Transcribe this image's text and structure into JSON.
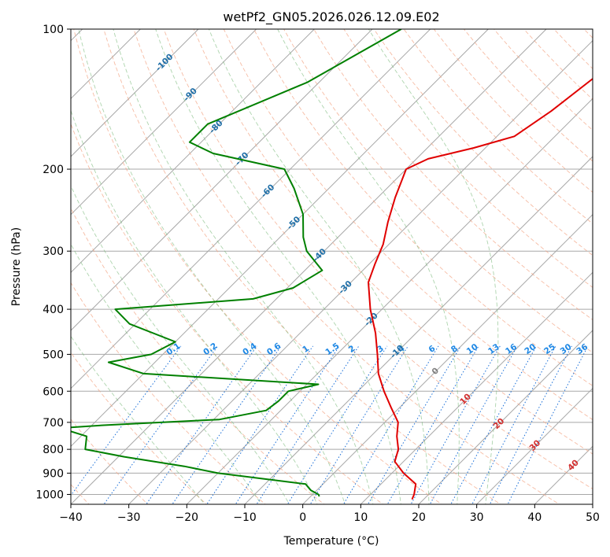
{
  "chart_data": {
    "type": "line",
    "title": "wetPf2_GN05.2026.026.12.09.E02",
    "xlabel": "Temperature (°C)",
    "ylabel": "Pressure (hPa)",
    "xlim": [
      -40,
      50
    ],
    "ylim": [
      1050,
      100
    ],
    "y_scale": "log",
    "grid": true,
    "x_ticks": [
      -40,
      -30,
      -20,
      -10,
      0,
      10,
      20,
      30,
      40,
      50
    ],
    "y_ticks": [
      100,
      200,
      300,
      400,
      500,
      600,
      700,
      800,
      900,
      1000
    ],
    "skew_temperature_ticks": [
      "-100",
      "-90",
      "-80",
      "-70",
      "-60",
      "-50",
      "-40",
      "-30",
      "-20",
      "-10",
      "0",
      "10",
      "20",
      "30",
      "40"
    ],
    "mixing_ratio_labels": [
      "0.1",
      "0.2",
      "0.4",
      "0.6",
      "1",
      "1.5",
      "2",
      "3",
      "4",
      "6",
      "8",
      "10",
      "13",
      "16",
      "20",
      "25",
      "30",
      "36"
    ],
    "series": [
      {
        "role": "temperature",
        "color": "#e00000",
        "points": [
          [
            100,
            -23.0
          ],
          [
            120,
            -22.8
          ],
          [
            150,
            -25.0
          ],
          [
            170,
            -27.0
          ],
          [
            180,
            -32.0
          ],
          [
            190,
            -38.0
          ],
          [
            200,
            -40.0
          ],
          [
            230,
            -37.0
          ],
          [
            260,
            -34.0
          ],
          [
            290,
            -31.0
          ],
          [
            320,
            -29.0
          ],
          [
            350,
            -27.0
          ],
          [
            400,
            -22.0
          ],
          [
            450,
            -17.0
          ],
          [
            500,
            -13.0
          ],
          [
            550,
            -9.5
          ],
          [
            600,
            -5.5
          ],
          [
            650,
            -1.5
          ],
          [
            700,
            2.3
          ],
          [
            750,
            4.5
          ],
          [
            800,
            7.0
          ],
          [
            850,
            8.5
          ],
          [
            900,
            12.0
          ],
          [
            950,
            16.0
          ],
          [
            1000,
            17.5
          ],
          [
            1025,
            18.0
          ]
        ]
      },
      {
        "role": "dewpoint",
        "color": "#008000",
        "points": [
          [
            100,
            -65.0
          ],
          [
            130,
            -72.0
          ],
          [
            160,
            -82.0
          ],
          [
            175,
            -82.0
          ],
          [
            185,
            -76.0
          ],
          [
            200,
            -61.0
          ],
          [
            220,
            -56.0
          ],
          [
            250,
            -50.0
          ],
          [
            280,
            -46.0
          ],
          [
            300,
            -43.0
          ],
          [
            330,
            -37.0
          ],
          [
            360,
            -39.0
          ],
          [
            380,
            -44.0
          ],
          [
            400,
            -66.0
          ],
          [
            430,
            -61.0
          ],
          [
            470,
            -50.0
          ],
          [
            500,
            -52.0
          ],
          [
            520,
            -58.0
          ],
          [
            550,
            -50.0
          ],
          [
            580,
            -18.0
          ],
          [
            600,
            -22.0
          ],
          [
            630,
            -22.0
          ],
          [
            660,
            -22.5
          ],
          [
            690,
            -29.0
          ],
          [
            710,
            -48.0
          ],
          [
            720,
            -55.0
          ],
          [
            750,
            -49.0
          ],
          [
            800,
            -47.0
          ],
          [
            830,
            -39.0
          ],
          [
            870,
            -27.0
          ],
          [
            900,
            -20.0
          ],
          [
            950,
            -3.0
          ],
          [
            980,
            -1.0
          ],
          [
            1000,
            1.0
          ],
          [
            1010,
            1.5
          ]
        ]
      }
    ]
  }
}
